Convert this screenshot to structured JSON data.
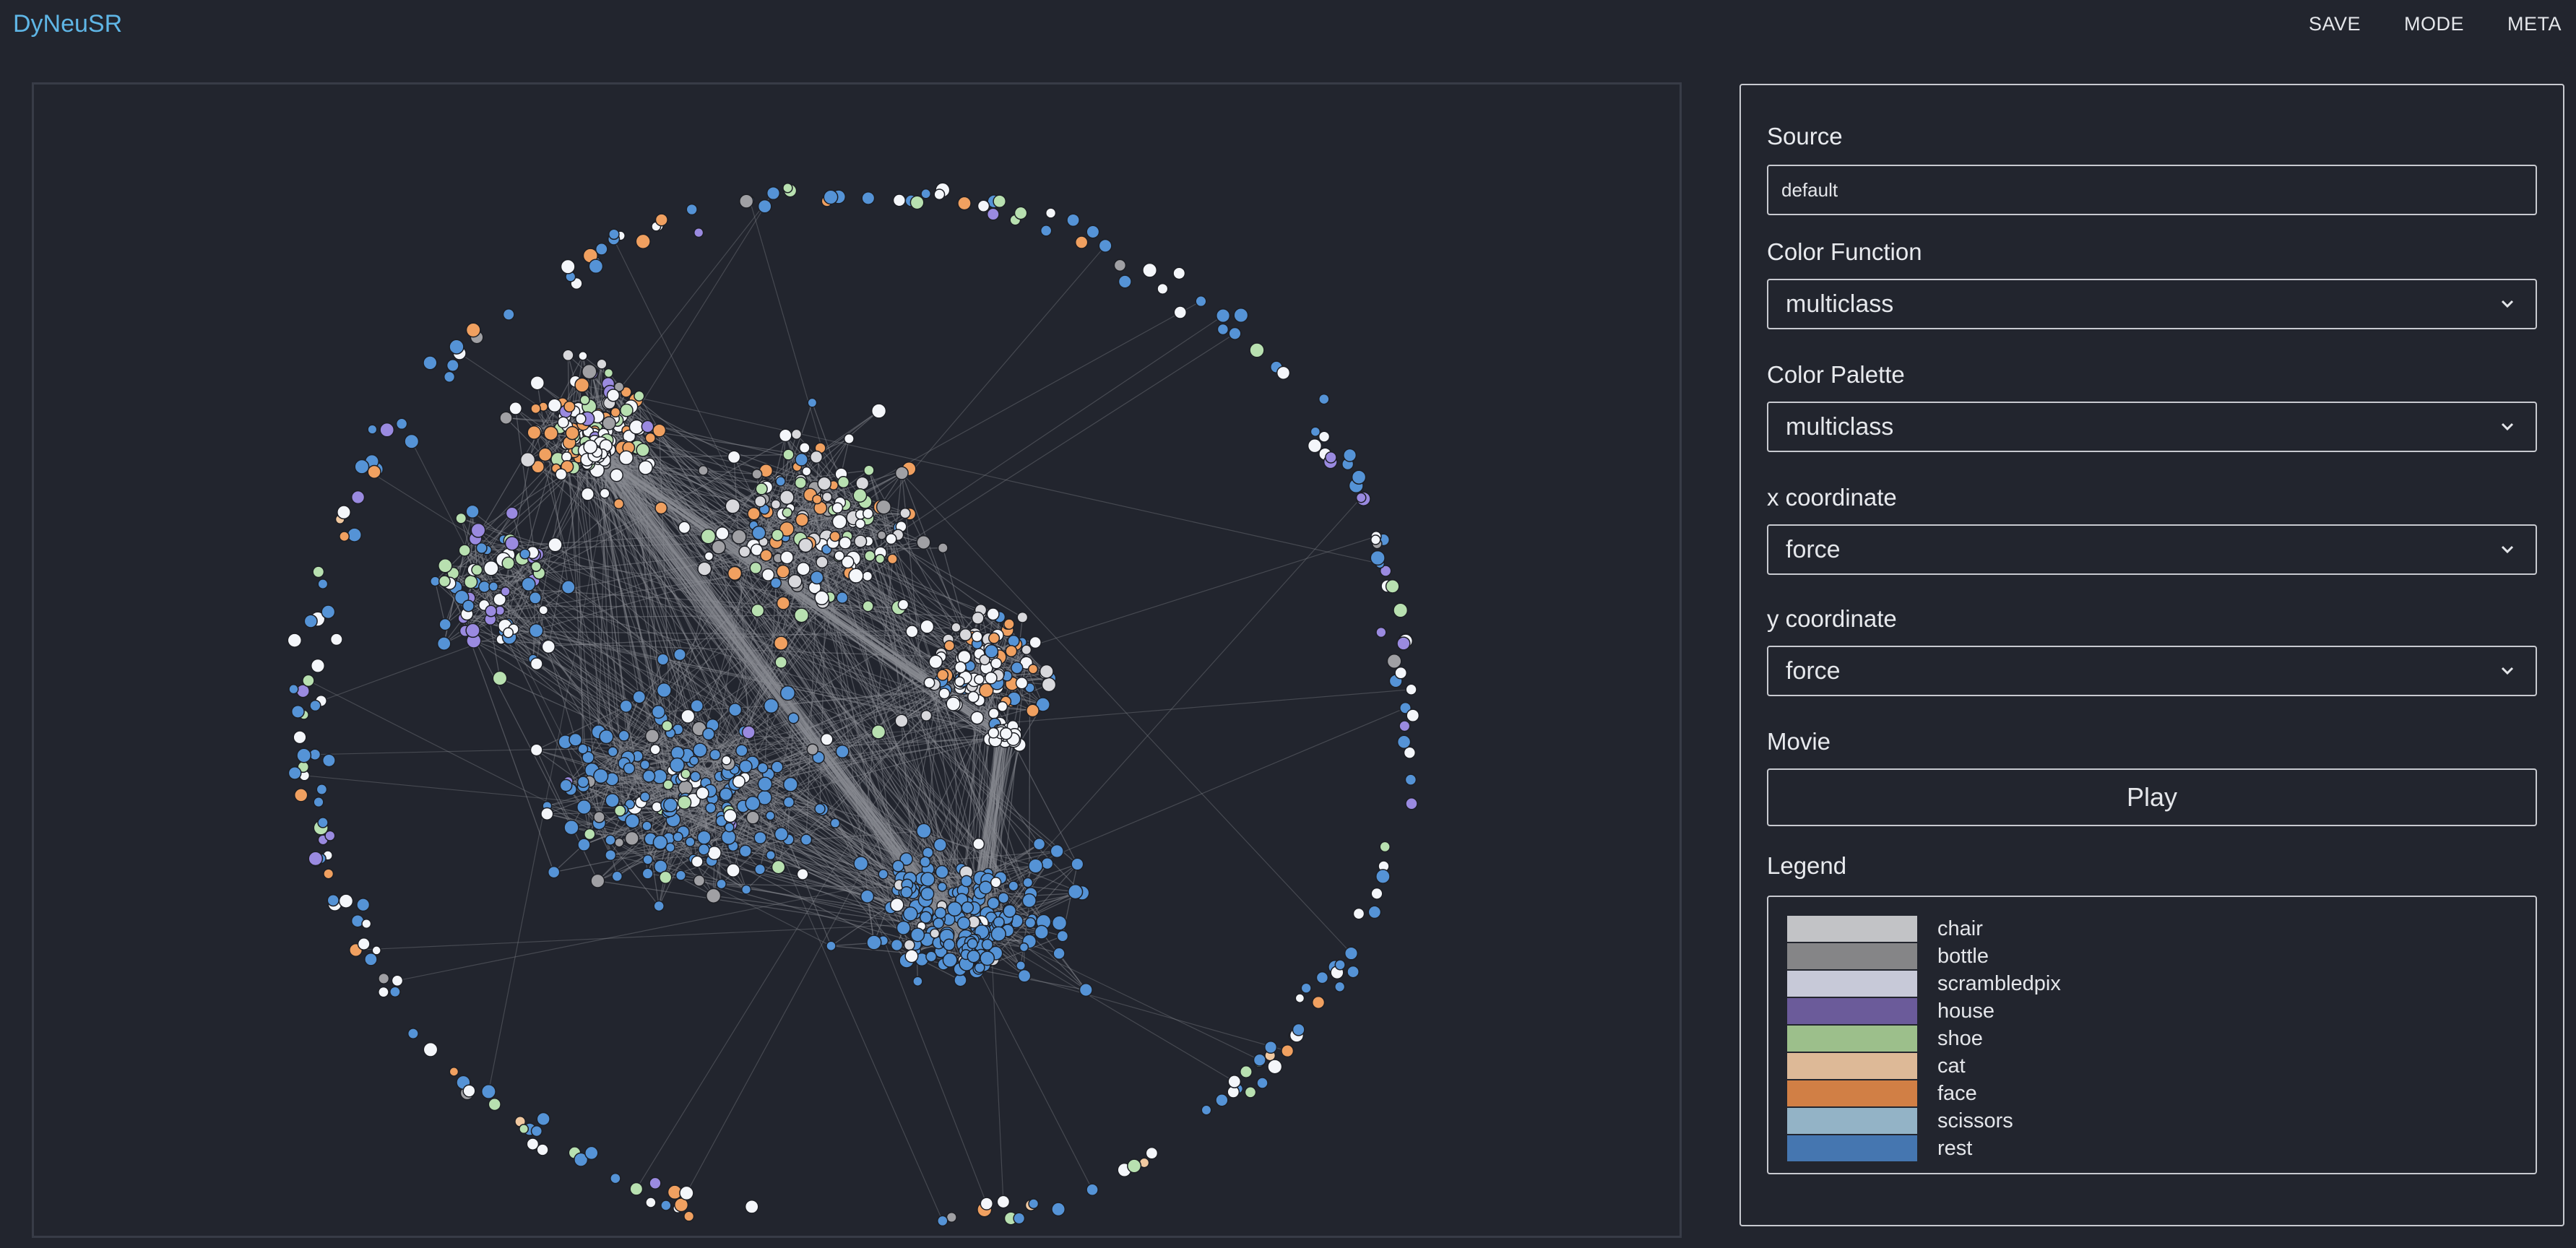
{
  "app": {
    "title": "DyNeuSR"
  },
  "menu": [
    {
      "label": "SAVE"
    },
    {
      "label": "MODE"
    },
    {
      "label": "META"
    }
  ],
  "controls": {
    "source": {
      "label": "Source",
      "value": "default"
    },
    "color_function": {
      "label": "Color Function",
      "value": "multiclass"
    },
    "color_palette": {
      "label": "Color Palette",
      "value": "multiclass"
    },
    "x_coordinate": {
      "label": "x coordinate",
      "value": "force"
    },
    "y_coordinate": {
      "label": "y coordinate",
      "value": "force"
    },
    "movie": {
      "label": "Movie",
      "button": "Play"
    },
    "legend": {
      "label": "Legend",
      "items": [
        {
          "name": "chair",
          "color": "#c2c3c6"
        },
        {
          "name": "bottle",
          "color": "#858587"
        },
        {
          "name": "scrambledpix",
          "color": "#c7c9d8"
        },
        {
          "name": "house",
          "color": "#6b5b9a"
        },
        {
          "name": "shoe",
          "color": "#9cbf8b"
        },
        {
          "name": "cat",
          "color": "#ddb997"
        },
        {
          "name": "face",
          "color": "#d17f45"
        },
        {
          "name": "scissors",
          "color": "#93b3c6"
        },
        {
          "name": "rest",
          "color": "#4576b0"
        }
      ]
    }
  },
  "graph": {
    "node_colors": {
      "rest": "#5593d6",
      "face": "#f0a060",
      "shoe": "#b8e0b0",
      "house": "#9a8ae0",
      "chair": "#d8d8dc",
      "bottle": "#a0a0a4",
      "scrambledpix": "#f4f6fa",
      "cat": "#f0c8a0",
      "edge": "#8a8c92"
    }
  }
}
